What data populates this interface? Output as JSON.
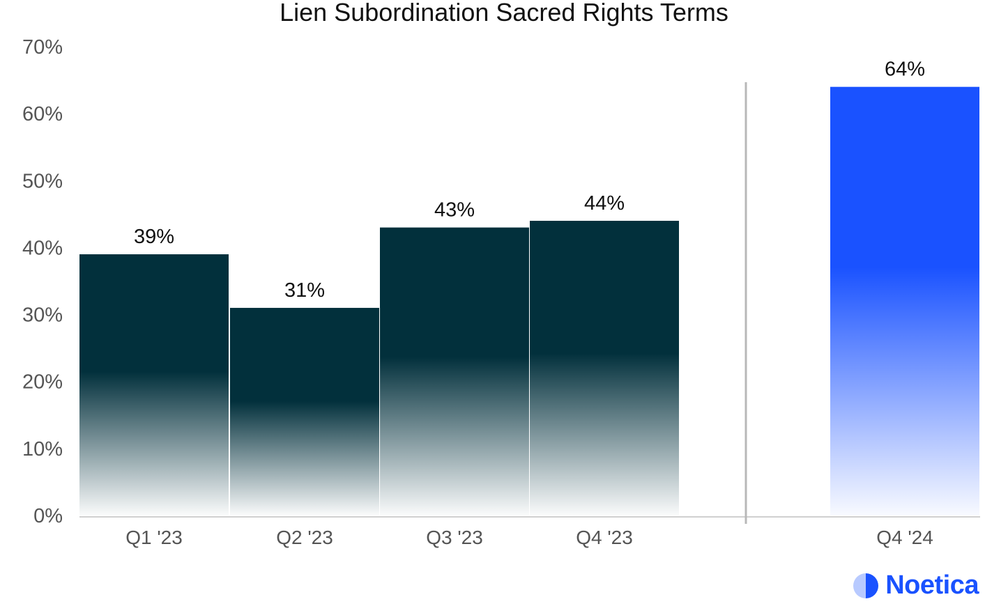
{
  "chart_data": {
    "type": "bar",
    "title": "Lien Subordination Sacred Rights Terms",
    "categories": [
      "Q1 '23",
      "Q2 '23",
      "Q3 '23",
      "Q4 '23",
      "Q4 '24"
    ],
    "values": [
      39,
      31,
      43,
      44,
      64
    ],
    "value_labels": [
      "39%",
      "31%",
      "43%",
      "44%",
      "64%"
    ],
    "ylim": [
      0,
      70
    ],
    "yticks": [
      0,
      10,
      20,
      30,
      40,
      50,
      60,
      70
    ],
    "ytick_labels": [
      "0%",
      "10%",
      "20%",
      "30%",
      "40%",
      "50%",
      "60%",
      "70%"
    ],
    "xlabel": "",
    "ylabel": "",
    "grid": false,
    "legend": "none",
    "colors": {
      "historical": "#02303c",
      "highlight": "#1a52ff",
      "divider": "#b8b8b8",
      "axis": "#d0d0d0"
    }
  },
  "brand": {
    "name": "Noetica",
    "icon": "half-circle-logo-icon",
    "color": "#1a52ff"
  }
}
